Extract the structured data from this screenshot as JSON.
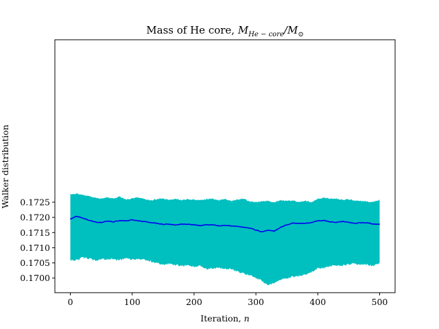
{
  "chart_data": {
    "type": "area",
    "title_main": "Mass of He core, ",
    "title_math_M": "M",
    "title_math_sub": "He − core",
    "title_math_slash": "/M",
    "title_math_sun": "⊙",
    "xlabel_main": "Iteration, ",
    "xlabel_math": "n",
    "ylabel": "Walker distribution",
    "xlim": [
      -25,
      525
    ],
    "ylim": [
      0.16952,
      0.17785
    ],
    "x_ticks": [
      0,
      100,
      200,
      300,
      400,
      500
    ],
    "x_tick_labels": [
      "0",
      "100",
      "200",
      "300",
      "400",
      "500"
    ],
    "y_ticks": [
      0.17,
      0.1705,
      0.171,
      0.1715,
      0.172,
      0.1725
    ],
    "y_tick_labels": [
      "0.1700",
      "0.1705",
      "0.1710",
      "0.1715",
      "0.1720",
      "0.1725"
    ],
    "grid": false,
    "series": [
      {
        "kind": "band",
        "color": "#00bfbf",
        "x": [
          0,
          10,
          20,
          30,
          40,
          50,
          60,
          70,
          80,
          90,
          100,
          110,
          120,
          130,
          140,
          150,
          160,
          170,
          180,
          190,
          200,
          210,
          220,
          230,
          240,
          250,
          260,
          270,
          280,
          290,
          300,
          310,
          320,
          330,
          340,
          350,
          360,
          370,
          380,
          390,
          400,
          410,
          420,
          430,
          440,
          450,
          460,
          470,
          480,
          490,
          500
        ],
        "upper": [
          0.17275,
          0.17278,
          0.17275,
          0.1727,
          0.17265,
          0.17262,
          0.17266,
          0.17262,
          0.17268,
          0.17258,
          0.17262,
          0.17266,
          0.1726,
          0.17256,
          0.1726,
          0.17262,
          0.17258,
          0.17262,
          0.17256,
          0.1726,
          0.17258,
          0.17256,
          0.1726,
          0.17262,
          0.17256,
          0.1726,
          0.17254,
          0.17258,
          0.17262,
          0.17252,
          0.1725,
          0.17253,
          0.17254,
          0.1725,
          0.17256,
          0.17254,
          0.17256,
          0.1725,
          0.17255,
          0.1725,
          0.17262,
          0.17265,
          0.17262,
          0.17262,
          0.17258,
          0.1726,
          0.17255,
          0.17254,
          0.17252,
          0.1725,
          0.17258
        ],
        "lower": [
          0.17058,
          0.1706,
          0.17068,
          0.17065,
          0.17058,
          0.17063,
          0.17062,
          0.17062,
          0.1706,
          0.17065,
          0.17062,
          0.17064,
          0.1706,
          0.17055,
          0.1705,
          0.17044,
          0.17048,
          0.17044,
          0.1704,
          0.17042,
          0.17038,
          0.1704,
          0.1703,
          0.17032,
          0.17035,
          0.1703,
          0.1703,
          0.17022,
          0.17015,
          0.1701,
          0.17002,
          0.1699,
          0.16978,
          0.16984,
          0.16995,
          0.16998,
          0.17005,
          0.17005,
          0.17012,
          0.1702,
          0.17032,
          0.17032,
          0.1704,
          0.1704,
          0.17042,
          0.17045,
          0.17048,
          0.17045,
          0.17045,
          0.1704,
          0.1705
        ]
      },
      {
        "kind": "line",
        "color": "#0000ee",
        "x": [
          0,
          10,
          20,
          30,
          40,
          50,
          60,
          70,
          80,
          90,
          100,
          110,
          120,
          130,
          140,
          150,
          160,
          170,
          180,
          190,
          200,
          210,
          220,
          230,
          240,
          250,
          260,
          270,
          280,
          290,
          300,
          310,
          320,
          330,
          340,
          350,
          360,
          370,
          380,
          390,
          400,
          410,
          420,
          430,
          440,
          450,
          460,
          470,
          480,
          490,
          500
        ],
        "values": [
          0.17195,
          0.17203,
          0.17198,
          0.1719,
          0.17185,
          0.17183,
          0.17188,
          0.17185,
          0.1719,
          0.17188,
          0.17192,
          0.17188,
          0.17186,
          0.17183,
          0.1718,
          0.17177,
          0.17177,
          0.17175,
          0.17178,
          0.17177,
          0.17175,
          0.17173,
          0.17176,
          0.17175,
          0.17172,
          0.17174,
          0.17172,
          0.1717,
          0.17168,
          0.17165,
          0.17158,
          0.17152,
          0.17158,
          0.17155,
          0.17168,
          0.17175,
          0.17182,
          0.1718,
          0.1718,
          0.17183,
          0.17188,
          0.1719,
          0.17185,
          0.17183,
          0.17187,
          0.17183,
          0.1718,
          0.17183,
          0.17182,
          0.17178,
          0.17178
        ]
      }
    ]
  }
}
